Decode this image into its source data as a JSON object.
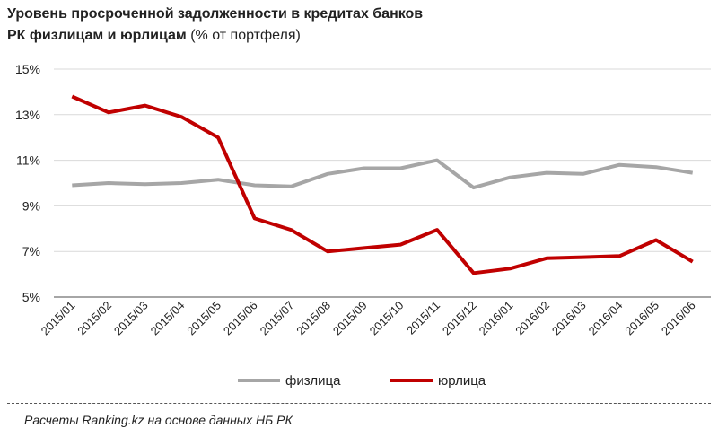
{
  "title": {
    "line1": "Уровень просроченной задолженности в кредитах банков",
    "line2_bold": "РК физлицам и юрлицам",
    "line2_rest": " (% от портфеля)"
  },
  "footer": "Расчеты Ranking.kz на основе данных НБ РК",
  "chart_data": {
    "type": "line",
    "title": "Уровень просроченной задолженности в кредитах банков РК физлицам и юрлицам (% от портфеля)",
    "xlabel": "",
    "ylabel": "",
    "ylim": [
      5,
      15
    ],
    "yticks": [
      5,
      7,
      9,
      11,
      13,
      15
    ],
    "ytick_labels": [
      "5%",
      "7%",
      "9%",
      "11%",
      "13%",
      "15%"
    ],
    "grid": true,
    "legend": "bottom",
    "categories": [
      "2015/01",
      "2015/02",
      "2015/03",
      "2015/04",
      "2015/05",
      "2015/06",
      "2015/07",
      "2015/08",
      "2015/09",
      "2015/10",
      "2015/11",
      "2015/12",
      "2016/01",
      "2016/02",
      "2016/03",
      "2016/04",
      "2016/05",
      "2016/06"
    ],
    "series": [
      {
        "name": "физлица",
        "color": "#a6a6a6",
        "values": [
          9.9,
          10.0,
          9.95,
          10.0,
          10.15,
          9.9,
          9.85,
          10.4,
          10.65,
          10.65,
          11.0,
          9.8,
          10.25,
          10.45,
          10.4,
          10.8,
          10.7,
          10.45
        ]
      },
      {
        "name": "юрлица",
        "color": "#c00000",
        "values": [
          13.8,
          13.1,
          13.4,
          12.9,
          12.0,
          8.45,
          7.95,
          7.0,
          7.15,
          7.3,
          7.95,
          6.05,
          6.25,
          6.7,
          6.75,
          6.8,
          7.5,
          6.55
        ]
      }
    ]
  }
}
